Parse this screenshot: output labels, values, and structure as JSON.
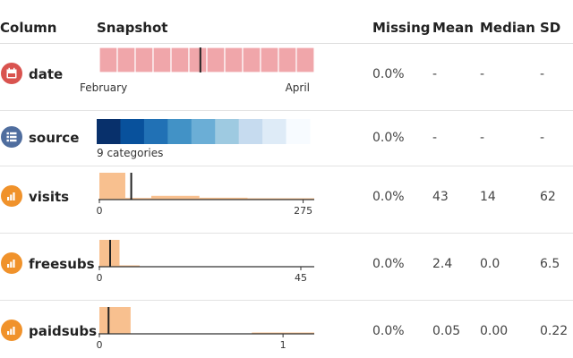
{
  "header": {
    "column": "Column",
    "snapshot": "Snapshot",
    "missing": "Missing",
    "mean": "Mean",
    "median": "Median",
    "sd": "SD"
  },
  "rows": [
    {
      "name": "date",
      "icon": "calendar-icon",
      "icon_color": "#d9534f",
      "missing": "0.0%",
      "mean": "-",
      "median": "-",
      "sd": "-",
      "snapshot": {
        "type": "date-bins",
        "bins": 12,
        "fill": "#f0a6aa",
        "marker_fraction": 0.47,
        "label_left": "February",
        "label_right": "April"
      }
    },
    {
      "name": "source",
      "icon": "list-icon",
      "icon_color": "#4f6d9e",
      "missing": "0.0%",
      "mean": "-",
      "median": "-",
      "sd": "-",
      "snapshot": {
        "type": "categories",
        "count_label": "9 categories",
        "colors": [
          "#08306b",
          "#08519c",
          "#2171b5",
          "#4292c6",
          "#6baed6",
          "#9ecae1",
          "#c6dbef",
          "#deebf7",
          "#f7fbff"
        ]
      }
    },
    {
      "name": "visits",
      "icon": "bar-chart-icon",
      "icon_color": "#f0922b",
      "missing": "0.0%",
      "mean": "43",
      "median": "14",
      "sd": "62",
      "snapshot": {
        "type": "histogram",
        "fill": "#f8c08f",
        "xmin": 0,
        "xmax": 290,
        "bins": [
          [
            0,
            35,
            1.0
          ],
          [
            35,
            70,
            0.06
          ],
          [
            70,
            135,
            0.14
          ],
          [
            135,
            200,
            0.07
          ],
          [
            200,
            290,
            0.02
          ]
        ],
        "marker": 43,
        "tick_left": "0",
        "tick_right": "275",
        "tick_right_value": 275
      }
    },
    {
      "name": "freesubs",
      "icon": "bar-chart-icon",
      "icon_color": "#f0922b",
      "missing": "0.0%",
      "mean": "2.4",
      "median": "0.0",
      "sd": "6.5",
      "snapshot": {
        "type": "histogram",
        "fill": "#f8c08f",
        "xmin": 0,
        "xmax": 48,
        "bins": [
          [
            0,
            4.5,
            1.0
          ],
          [
            4.5,
            9,
            0.05
          ]
        ],
        "marker": 2.4,
        "tick_left": "0",
        "tick_right": "45",
        "tick_right_value": 45
      }
    },
    {
      "name": "paidsubs",
      "icon": "bar-chart-icon",
      "icon_color": "#f0922b",
      "missing": "0.0%",
      "mean": "0.05",
      "median": "0.00",
      "sd": "0.22",
      "snapshot": {
        "type": "histogram",
        "fill": "#f8c08f",
        "xmin": 0,
        "xmax": 1.17,
        "bins": [
          [
            0,
            0.17,
            1.0
          ],
          [
            0.83,
            1.17,
            0.04
          ]
        ],
        "marker": 0.05,
        "tick_left": "0",
        "tick_right": "1",
        "tick_right_value": 1
      }
    }
  ]
}
